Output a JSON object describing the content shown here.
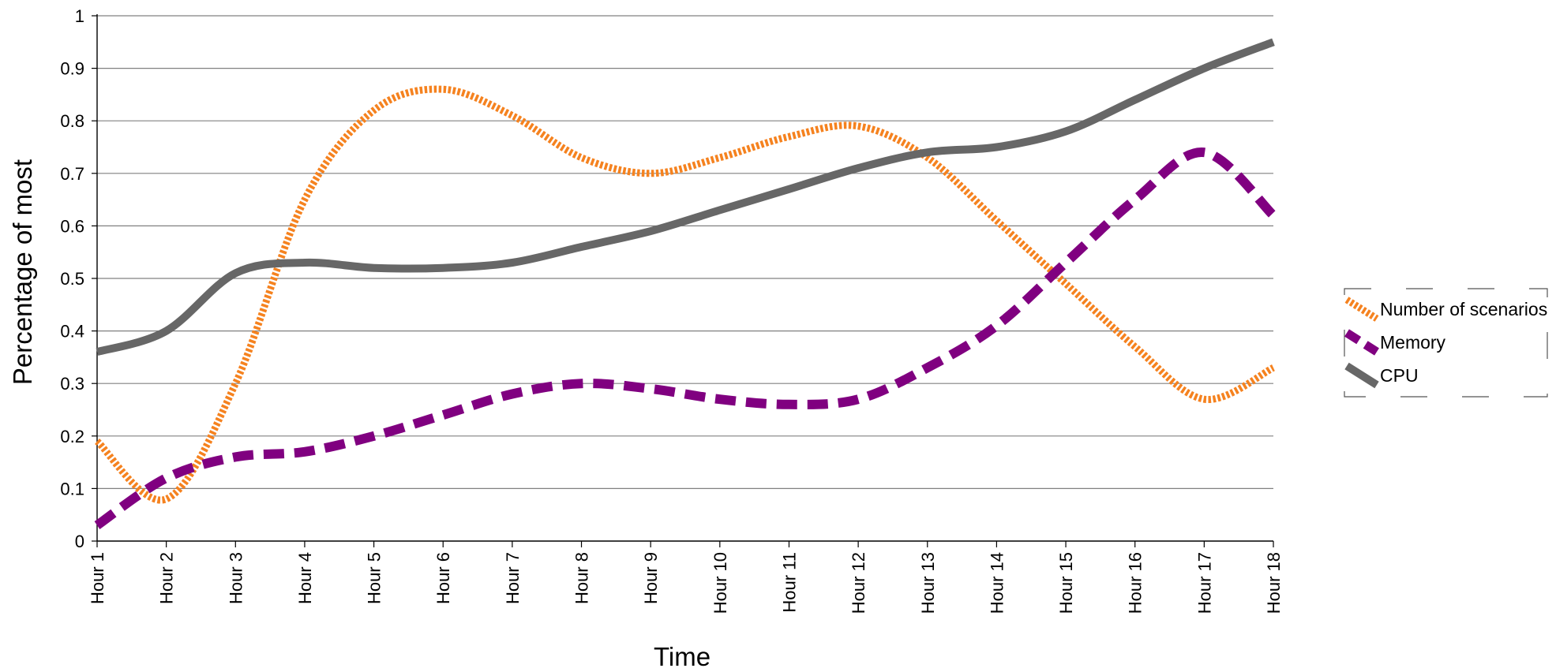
{
  "chart_data": {
    "type": "line",
    "title": "",
    "xlabel": "Time",
    "ylabel": "Percentage of most",
    "categories": [
      "Hour 1",
      "Hour 2",
      "Hour 3",
      "Hour 4",
      "Hour 5",
      "Hour 6",
      "Hour 7",
      "Hour 8",
      "Hour 9",
      "Hour 10",
      "Hour 11",
      "Hour 12",
      "Hour 13",
      "Hour 14",
      "Hour 15",
      "Hour 16",
      "Hour 17",
      "Hour 18"
    ],
    "y_ticks": [
      "0",
      "0.1",
      "0.2",
      "0.3",
      "0.4",
      "0.5",
      "0.6",
      "0.7",
      "0.8",
      "0.9",
      "1"
    ],
    "ylim": [
      0,
      1
    ],
    "grid": true,
    "legend_position": "right",
    "smooth": true,
    "series": [
      {
        "name": "Number of scenarios",
        "color": "#F5821F",
        "style": "dotted",
        "values": [
          0.19,
          0.08,
          0.3,
          0.65,
          0.82,
          0.86,
          0.81,
          0.73,
          0.7,
          0.73,
          0.77,
          0.79,
          0.73,
          0.61,
          0.49,
          0.37,
          0.27,
          0.33
        ]
      },
      {
        "name": "Memory",
        "color": "#800080",
        "style": "dashed",
        "values": [
          0.03,
          0.12,
          0.16,
          0.17,
          0.2,
          0.24,
          0.28,
          0.3,
          0.29,
          0.27,
          0.26,
          0.27,
          0.33,
          0.41,
          0.53,
          0.65,
          0.74,
          0.62
        ]
      },
      {
        "name": "CPU",
        "color": "#676767",
        "style": "solid",
        "values": [
          0.36,
          0.4,
          0.51,
          0.53,
          0.52,
          0.52,
          0.53,
          0.56,
          0.59,
          0.63,
          0.67,
          0.71,
          0.74,
          0.75,
          0.78,
          0.84,
          0.9,
          0.95
        ]
      }
    ]
  }
}
